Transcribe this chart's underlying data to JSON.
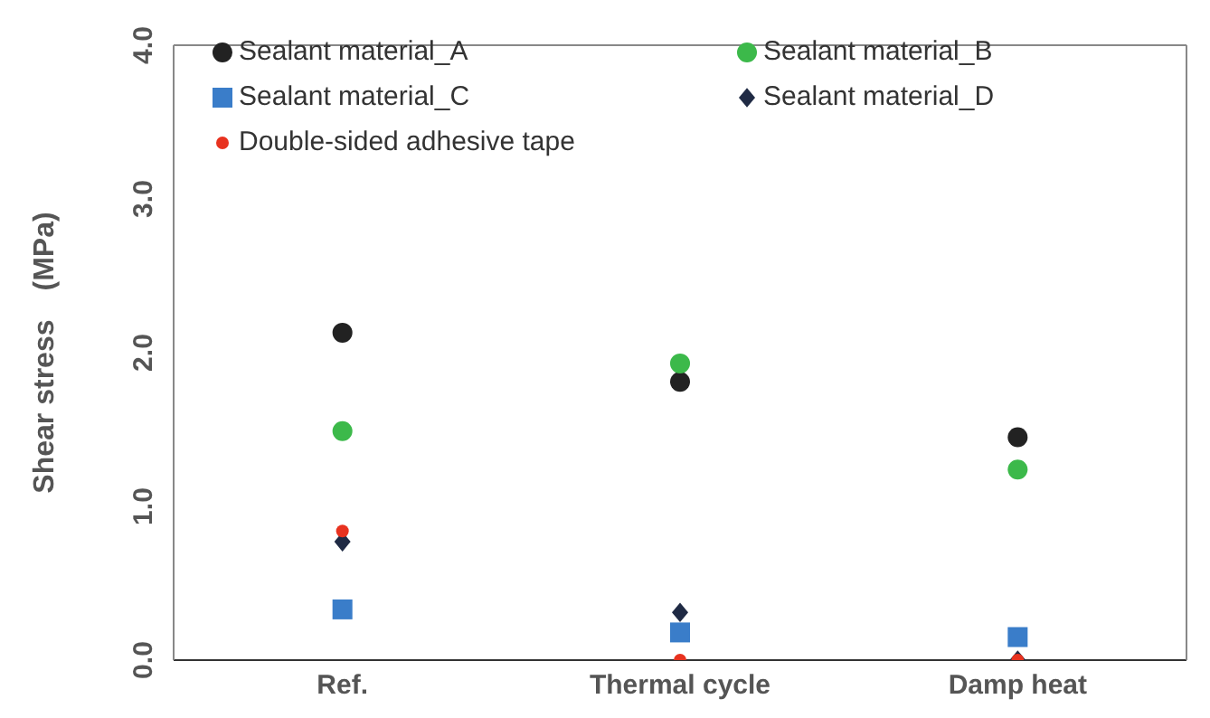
{
  "chart_data": {
    "type": "scatter",
    "ylabel": "Shear stress　(MPa)",
    "categories": [
      "Ref.",
      "Thermal cycle",
      "Damp heat"
    ],
    "ylim": [
      0,
      4
    ],
    "yticks": [
      {
        "value": 0,
        "label": "0.0"
      },
      {
        "value": 1,
        "label": "1.0"
      },
      {
        "value": 2,
        "label": "2.0"
      },
      {
        "value": 3,
        "label": "3.0"
      },
      {
        "value": 4,
        "label": "4.0"
      }
    ],
    "legend": "top",
    "series": [
      {
        "name": "Sealant material_A",
        "color": "#222222",
        "marker": "circle",
        "values": [
          2.13,
          1.81,
          1.45
        ]
      },
      {
        "name": "Sealant material_B",
        "color": "#3cb94a",
        "marker": "circle",
        "values": [
          1.49,
          1.93,
          1.24
        ]
      },
      {
        "name": "Sealant material_C",
        "color": "#3a7dc9",
        "marker": "square",
        "values": [
          0.33,
          0.18,
          0.15
        ]
      },
      {
        "name": "Sealant material_D",
        "color": "#1f2a44",
        "marker": "diamond",
        "values": [
          0.77,
          0.31,
          0
        ]
      },
      {
        "name": "Double-sided adhesive tape",
        "color": "#e8321f",
        "marker": "circle",
        "values": [
          0.84,
          0,
          0
        ]
      }
    ]
  }
}
